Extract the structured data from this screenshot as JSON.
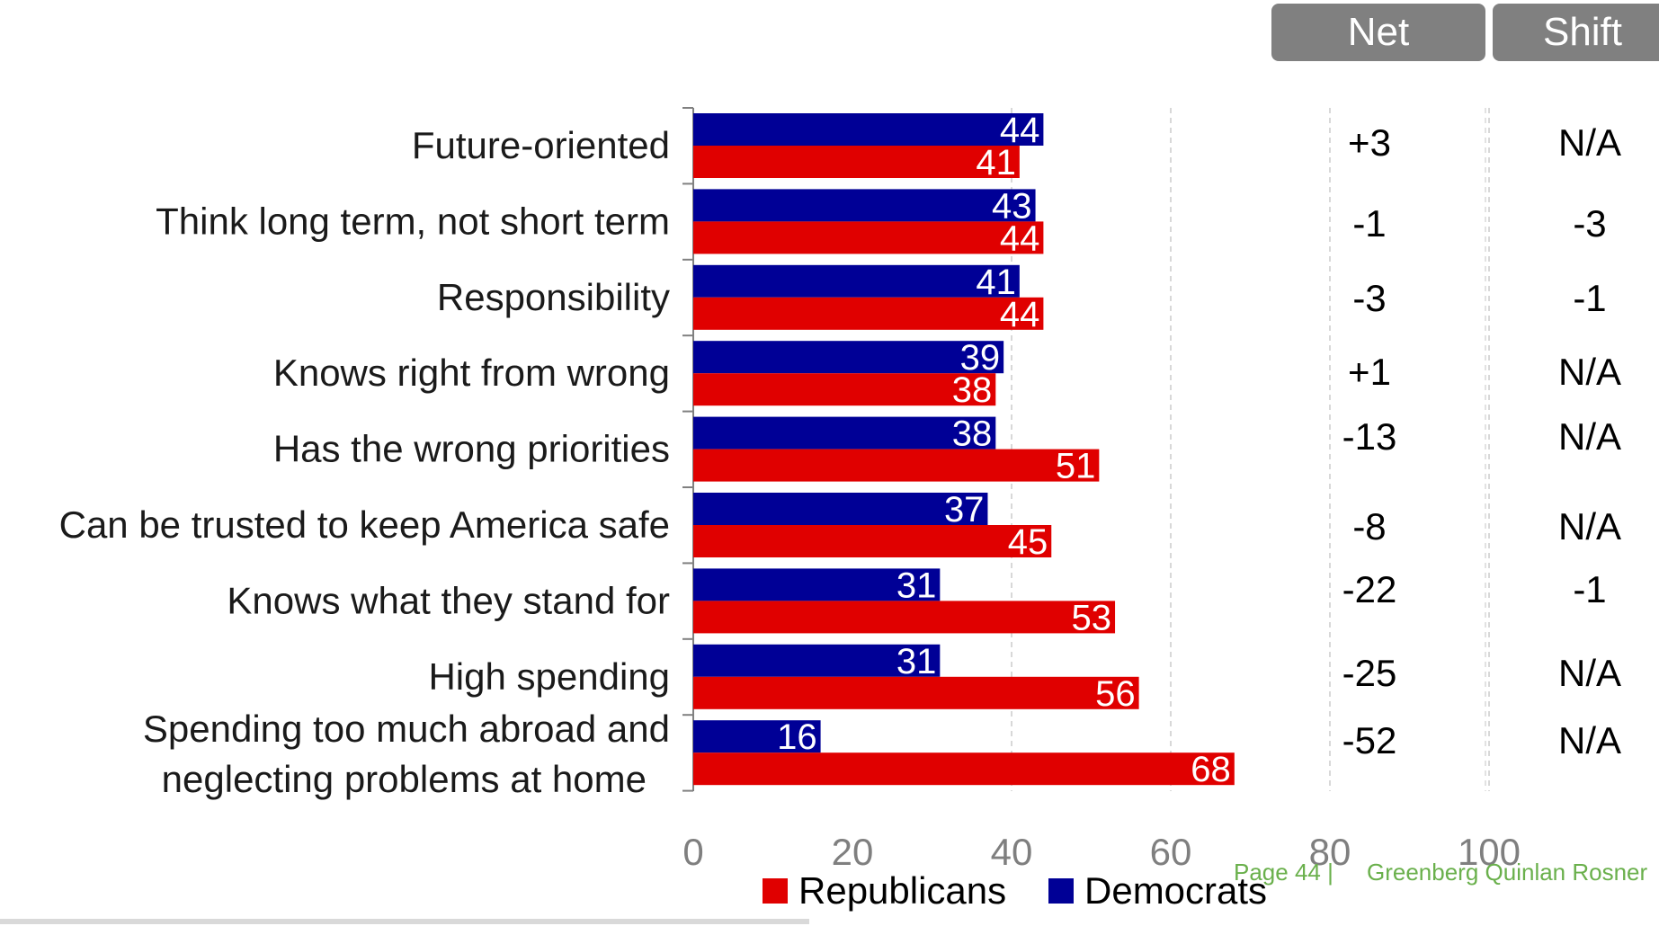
{
  "headers": {
    "net": "Net",
    "shift": "Shift"
  },
  "chart_data": {
    "type": "bar",
    "orientation": "horizontal",
    "categories": [
      "Future-oriented",
      "Think long term, not short term",
      "Responsibility",
      "Knows right from wrong",
      "Has the wrong priorities",
      "Can be trusted to keep America safe",
      "Knows what they stand for",
      "High spending",
      "Spending too much abroad and neglecting problems at home"
    ],
    "series": [
      {
        "name": "Democrats",
        "color": "#000096",
        "values": [
          44,
          43,
          41,
          39,
          38,
          37,
          31,
          31,
          16
        ]
      },
      {
        "name": "Republicans",
        "color": "#e00000",
        "values": [
          41,
          44,
          44,
          38,
          51,
          45,
          53,
          56,
          68
        ]
      }
    ],
    "xlim": [
      0,
      100
    ],
    "xticks": [
      "0",
      "20",
      "40",
      "60",
      "80",
      "100"
    ],
    "grid": true,
    "legend": [
      "Republicans",
      "Democrats"
    ],
    "legend_position": "bottom"
  },
  "net": [
    "+3",
    "-1",
    "-3",
    "+1",
    "-13",
    "-8",
    "-22",
    "-25",
    "-52"
  ],
  "shift": [
    "N/A",
    "-3",
    "-1",
    "N/A",
    "N/A",
    "N/A",
    "-1",
    "N/A",
    "N/A"
  ],
  "footer": {
    "page": "Page 44 |",
    "firm": "Greenberg Quinlan Rosner"
  }
}
